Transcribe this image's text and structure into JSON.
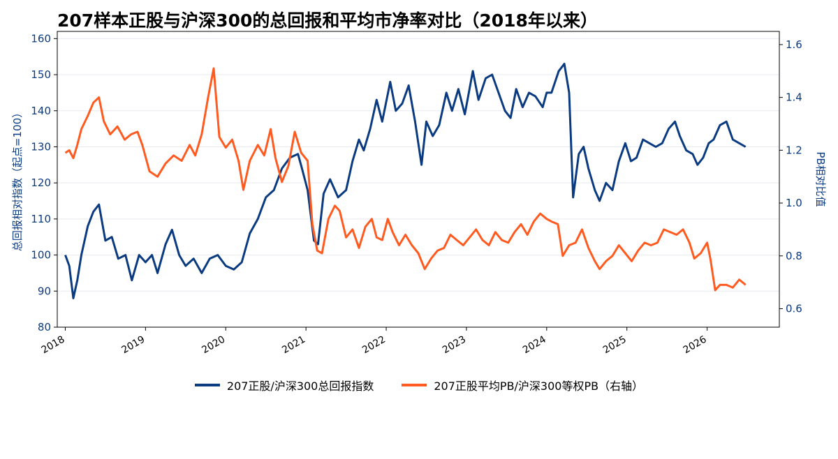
{
  "chart_data": {
    "type": "line",
    "title": "207样本正股与沪深300的总回报和平均市净率对比（2018年以来）",
    "ylabel_left": "总回报相对指数（起点=100）",
    "ylabel_right": "PB相对比值",
    "ylim_left": [
      80,
      162
    ],
    "ylim_right": [
      0.53,
      1.65
    ],
    "yticks_left": [
      80,
      90,
      100,
      110,
      120,
      130,
      140,
      150,
      160
    ],
    "yticks_right": [
      0.6,
      0.8,
      1.0,
      1.2,
      1.4,
      1.6
    ],
    "xlim": [
      2017.9,
      2026.9
    ],
    "xticks": [
      "2018",
      "2019",
      "2020",
      "2021",
      "2022",
      "2023",
      "2024",
      "2025",
      "2026"
    ],
    "grid": "horizontal",
    "legend_position": "bottom-center",
    "series": [
      {
        "name": "207正股/沪深300总回报指数",
        "axis": "left",
        "color": "#0A3A80",
        "points": [
          [
            2018.0,
            100
          ],
          [
            2018.05,
            97
          ],
          [
            2018.1,
            88
          ],
          [
            2018.15,
            93
          ],
          [
            2018.2,
            100
          ],
          [
            2018.28,
            108
          ],
          [
            2018.35,
            112
          ],
          [
            2018.42,
            114
          ],
          [
            2018.5,
            104
          ],
          [
            2018.58,
            105
          ],
          [
            2018.66,
            99
          ],
          [
            2018.75,
            100
          ],
          [
            2018.83,
            93
          ],
          [
            2018.92,
            100
          ],
          [
            2019.0,
            98
          ],
          [
            2019.08,
            100
          ],
          [
            2019.15,
            95
          ],
          [
            2019.25,
            103
          ],
          [
            2019.33,
            107
          ],
          [
            2019.42,
            100
          ],
          [
            2019.5,
            97
          ],
          [
            2019.6,
            99
          ],
          [
            2019.7,
            95
          ],
          [
            2019.8,
            99
          ],
          [
            2019.9,
            100
          ],
          [
            2020.0,
            97
          ],
          [
            2020.1,
            96
          ],
          [
            2020.2,
            98
          ],
          [
            2020.3,
            106
          ],
          [
            2020.4,
            110
          ],
          [
            2020.5,
            116
          ],
          [
            2020.6,
            118
          ],
          [
            2020.7,
            124
          ],
          [
            2020.8,
            127
          ],
          [
            2020.9,
            128
          ],
          [
            2020.95,
            124
          ],
          [
            2021.02,
            118
          ],
          [
            2021.1,
            104
          ],
          [
            2021.15,
            103
          ],
          [
            2021.22,
            117
          ],
          [
            2021.3,
            121
          ],
          [
            2021.4,
            116
          ],
          [
            2021.5,
            118
          ],
          [
            2021.58,
            126
          ],
          [
            2021.66,
            132
          ],
          [
            2021.72,
            129
          ],
          [
            2021.8,
            135
          ],
          [
            2021.88,
            143
          ],
          [
            2021.95,
            137
          ],
          [
            2022.05,
            148
          ],
          [
            2022.12,
            140
          ],
          [
            2022.2,
            142
          ],
          [
            2022.28,
            147
          ],
          [
            2022.36,
            137
          ],
          [
            2022.44,
            125
          ],
          [
            2022.5,
            137
          ],
          [
            2022.58,
            133
          ],
          [
            2022.66,
            136
          ],
          [
            2022.75,
            145
          ],
          [
            2022.82,
            140
          ],
          [
            2022.9,
            146
          ],
          [
            2022.98,
            139
          ],
          [
            2023.08,
            151
          ],
          [
            2023.15,
            143
          ],
          [
            2023.24,
            149
          ],
          [
            2023.32,
            150
          ],
          [
            2023.4,
            145
          ],
          [
            2023.48,
            140
          ],
          [
            2023.55,
            138
          ],
          [
            2023.62,
            146
          ],
          [
            2023.7,
            141
          ],
          [
            2023.78,
            145
          ],
          [
            2023.86,
            144
          ],
          [
            2023.95,
            141
          ],
          [
            2024.0,
            145
          ],
          [
            2024.06,
            145
          ],
          [
            2024.15,
            151
          ],
          [
            2024.22,
            153
          ],
          [
            2024.28,
            145
          ],
          [
            2024.33,
            116
          ],
          [
            2024.4,
            128
          ],
          [
            2024.46,
            130
          ],
          [
            2024.52,
            124
          ],
          [
            2024.6,
            118
          ],
          [
            2024.66,
            115
          ],
          [
            2024.74,
            120
          ],
          [
            2024.82,
            118
          ],
          [
            2024.9,
            126
          ],
          [
            2024.98,
            131
          ],
          [
            2025.05,
            126
          ],
          [
            2025.12,
            127
          ],
          [
            2025.2,
            132
          ],
          [
            2025.28,
            131
          ],
          [
            2025.36,
            130
          ],
          [
            2025.44,
            131
          ],
          [
            2025.52,
            135
          ],
          [
            2025.6,
            137
          ],
          [
            2025.66,
            133
          ],
          [
            2025.74,
            129
          ],
          [
            2025.82,
            128
          ],
          [
            2025.88,
            125
          ],
          [
            2025.95,
            127
          ],
          [
            2026.02,
            131
          ],
          [
            2026.08,
            132
          ],
          [
            2026.16,
            136
          ],
          [
            2026.24,
            137
          ],
          [
            2026.32,
            132
          ],
          [
            2026.4,
            131
          ],
          [
            2026.48,
            130
          ]
        ]
      },
      {
        "name": "207正股平均PB/沪深300等权PB（右轴）",
        "axis": "right",
        "color": "#FF5A1F",
        "points": [
          [
            2018.0,
            1.19
          ],
          [
            2018.05,
            1.2
          ],
          [
            2018.1,
            1.17
          ],
          [
            2018.15,
            1.22
          ],
          [
            2018.2,
            1.28
          ],
          [
            2018.28,
            1.33
          ],
          [
            2018.35,
            1.38
          ],
          [
            2018.42,
            1.4
          ],
          [
            2018.48,
            1.31
          ],
          [
            2018.56,
            1.26
          ],
          [
            2018.65,
            1.29
          ],
          [
            2018.74,
            1.24
          ],
          [
            2018.82,
            1.26
          ],
          [
            2018.9,
            1.27
          ],
          [
            2018.96,
            1.22
          ],
          [
            2019.05,
            1.12
          ],
          [
            2019.15,
            1.1
          ],
          [
            2019.25,
            1.15
          ],
          [
            2019.35,
            1.18
          ],
          [
            2019.45,
            1.16
          ],
          [
            2019.55,
            1.22
          ],
          [
            2019.62,
            1.18
          ],
          [
            2019.7,
            1.26
          ],
          [
            2019.78,
            1.4
          ],
          [
            2019.85,
            1.51
          ],
          [
            2019.92,
            1.25
          ],
          [
            2020.0,
            1.21
          ],
          [
            2020.08,
            1.24
          ],
          [
            2020.16,
            1.16
          ],
          [
            2020.22,
            1.05
          ],
          [
            2020.3,
            1.16
          ],
          [
            2020.4,
            1.22
          ],
          [
            2020.48,
            1.18
          ],
          [
            2020.56,
            1.28
          ],
          [
            2020.62,
            1.17
          ],
          [
            2020.7,
            1.08
          ],
          [
            2020.78,
            1.14
          ],
          [
            2020.86,
            1.27
          ],
          [
            2020.94,
            1.19
          ],
          [
            2021.02,
            1.16
          ],
          [
            2021.08,
            0.92
          ],
          [
            2021.14,
            0.82
          ],
          [
            2021.2,
            0.81
          ],
          [
            2021.28,
            0.94
          ],
          [
            2021.36,
            0.99
          ],
          [
            2021.42,
            0.97
          ],
          [
            2021.5,
            0.87
          ],
          [
            2021.58,
            0.9
          ],
          [
            2021.66,
            0.83
          ],
          [
            2021.74,
            0.91
          ],
          [
            2021.82,
            0.94
          ],
          [
            2021.88,
            0.87
          ],
          [
            2021.95,
            0.86
          ],
          [
            2022.02,
            0.94
          ],
          [
            2022.08,
            0.89
          ],
          [
            2022.16,
            0.84
          ],
          [
            2022.24,
            0.88
          ],
          [
            2022.32,
            0.84
          ],
          [
            2022.4,
            0.81
          ],
          [
            2022.48,
            0.75
          ],
          [
            2022.56,
            0.79
          ],
          [
            2022.64,
            0.82
          ],
          [
            2022.72,
            0.83
          ],
          [
            2022.8,
            0.88
          ],
          [
            2022.88,
            0.86
          ],
          [
            2022.96,
            0.84
          ],
          [
            2023.04,
            0.87
          ],
          [
            2023.12,
            0.9
          ],
          [
            2023.2,
            0.86
          ],
          [
            2023.28,
            0.84
          ],
          [
            2023.36,
            0.89
          ],
          [
            2023.44,
            0.86
          ],
          [
            2023.52,
            0.85
          ],
          [
            2023.6,
            0.89
          ],
          [
            2023.68,
            0.92
          ],
          [
            2023.76,
            0.88
          ],
          [
            2023.84,
            0.93
          ],
          [
            2023.92,
            0.96
          ],
          [
            2024.0,
            0.94
          ],
          [
            2024.06,
            0.93
          ],
          [
            2024.14,
            0.92
          ],
          [
            2024.2,
            0.8
          ],
          [
            2024.28,
            0.84
          ],
          [
            2024.36,
            0.85
          ],
          [
            2024.44,
            0.9
          ],
          [
            2024.52,
            0.83
          ],
          [
            2024.6,
            0.78
          ],
          [
            2024.66,
            0.75
          ],
          [
            2024.74,
            0.78
          ],
          [
            2024.82,
            0.8
          ],
          [
            2024.9,
            0.84
          ],
          [
            2024.98,
            0.81
          ],
          [
            2025.06,
            0.78
          ],
          [
            2025.14,
            0.82
          ],
          [
            2025.22,
            0.85
          ],
          [
            2025.3,
            0.84
          ],
          [
            2025.38,
            0.85
          ],
          [
            2025.46,
            0.9
          ],
          [
            2025.54,
            0.89
          ],
          [
            2025.62,
            0.88
          ],
          [
            2025.7,
            0.9
          ],
          [
            2025.78,
            0.85
          ],
          [
            2025.84,
            0.79
          ],
          [
            2025.92,
            0.81
          ],
          [
            2026.0,
            0.85
          ],
          [
            2026.04,
            0.79
          ],
          [
            2026.1,
            0.67
          ],
          [
            2026.16,
            0.69
          ],
          [
            2026.24,
            0.69
          ],
          [
            2026.32,
            0.68
          ],
          [
            2026.4,
            0.71
          ],
          [
            2026.48,
            0.69
          ]
        ]
      }
    ]
  }
}
